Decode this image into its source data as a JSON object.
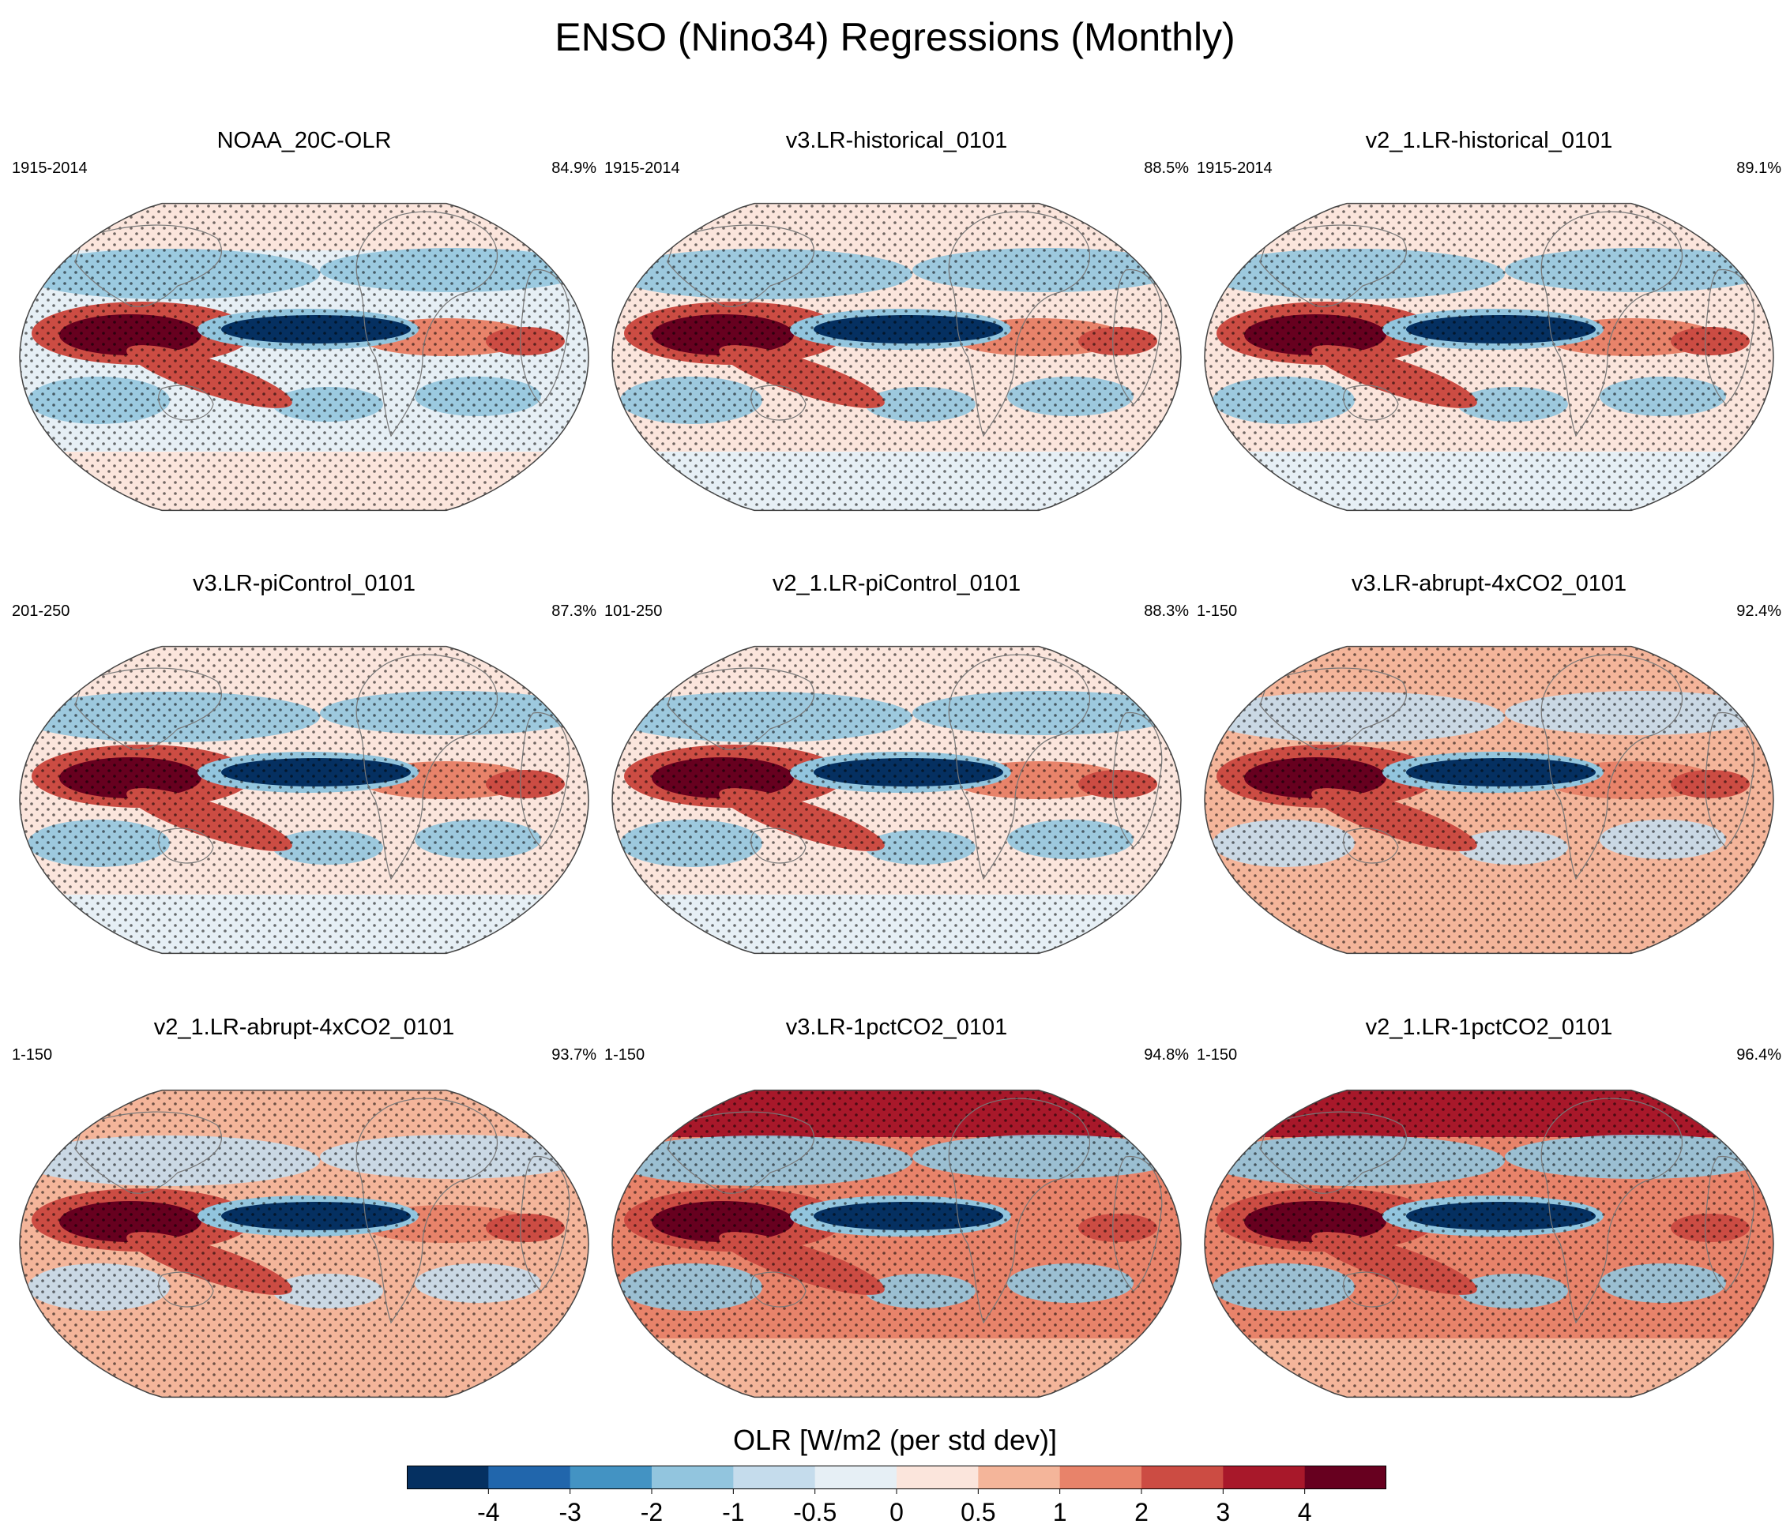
{
  "title": "ENSO (Nino34) Regressions (Monthly)",
  "chart_data": {
    "type": "heatmap",
    "projection": "robinson-like global maps",
    "panels": [
      {
        "title": "NOAA_20C-OLR",
        "period": "1915-2014",
        "percent": "84.9%",
        "style": "obs"
      },
      {
        "title": "v3.LR-historical_0101",
        "period": "1915-2014",
        "percent": "88.5%",
        "style": "ctrl"
      },
      {
        "title": "v2_1.LR-historical_0101",
        "period": "1915-2014",
        "percent": "89.1%",
        "style": "ctrl"
      },
      {
        "title": "v3.LR-piControl_0101",
        "period": "201-250",
        "percent": "87.3%",
        "style": "ctrl"
      },
      {
        "title": "v2_1.LR-piControl_0101",
        "period": "101-250",
        "percent": "88.3%",
        "style": "ctrl"
      },
      {
        "title": "v3.LR-abrupt-4xCO2_0101",
        "period": "1-150",
        "percent": "92.4%",
        "style": "warm"
      },
      {
        "title": "v2_1.LR-abrupt-4xCO2_0101",
        "period": "1-150",
        "percent": "93.7%",
        "style": "warm"
      },
      {
        "title": "v3.LR-1pctCO2_0101",
        "period": "1-150",
        "percent": "94.8%",
        "style": "hot"
      },
      {
        "title": "v2_1.LR-1pctCO2_0101",
        "period": "1-150",
        "percent": "96.4%",
        "style": "hot"
      }
    ],
    "colorbar": {
      "title": "OLR [W/m2 (per std dev)]",
      "levels": [
        -5,
        -4,
        -3,
        -2,
        -1,
        -0.5,
        0,
        0.5,
        1,
        2,
        3,
        4,
        5
      ],
      "tick_labels": [
        "-4",
        "-3",
        "-2",
        "-1",
        "-0.5",
        "0",
        "0.5",
        "1",
        "2",
        "3",
        "4"
      ],
      "colors": [
        "#053061",
        "#2166ac",
        "#4393c3",
        "#92c5de",
        "#c5dcec",
        "#e6eff5",
        "#fbe5dc",
        "#f4b59a",
        "#e8836a",
        "#cc4c43",
        "#a8182a",
        "#67001f"
      ]
    }
  }
}
